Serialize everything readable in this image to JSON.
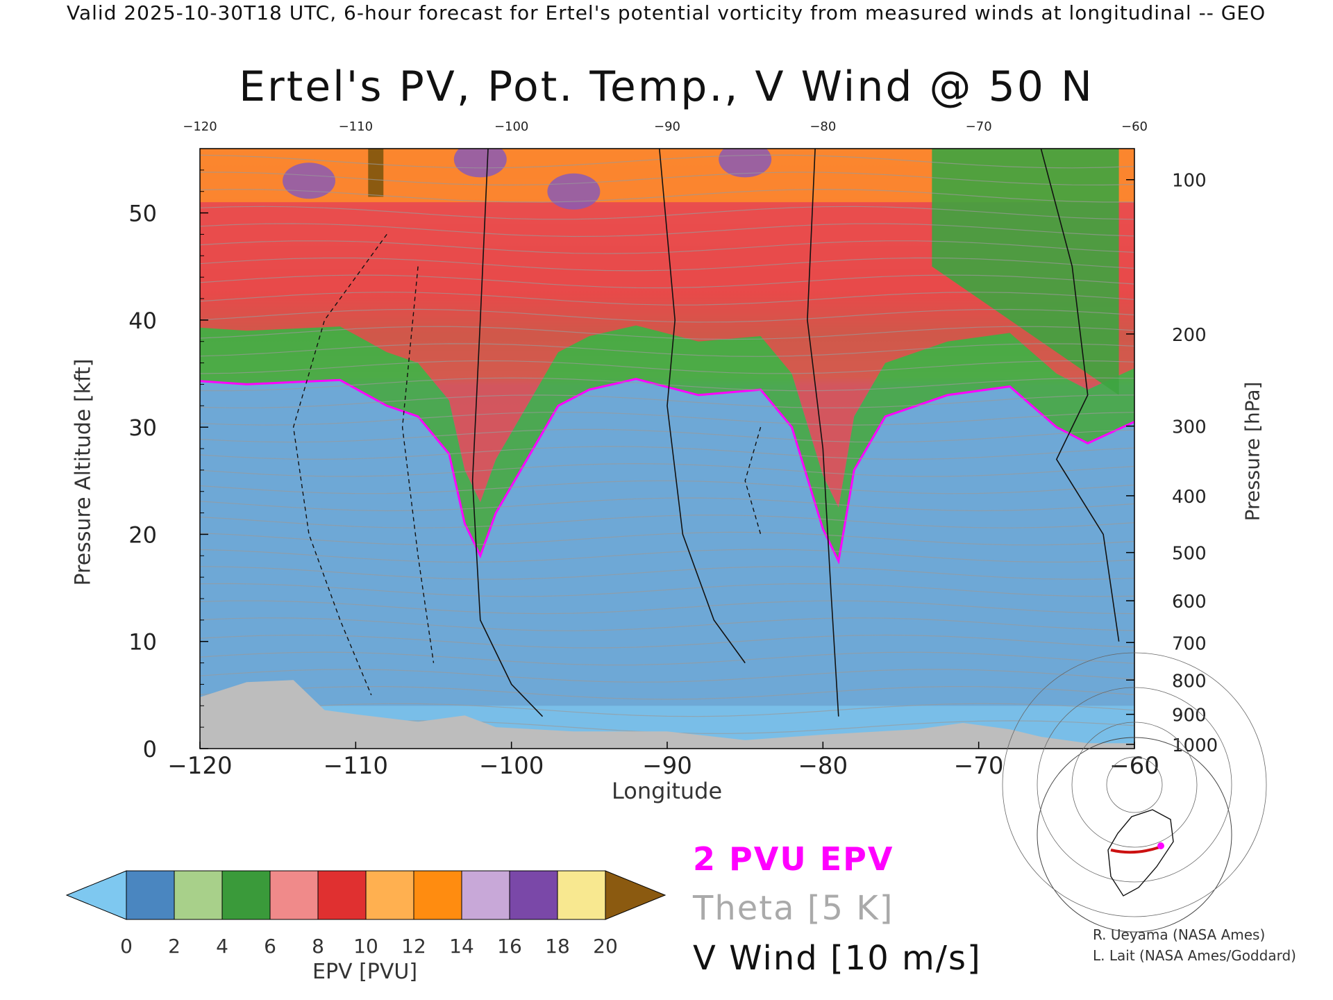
{
  "header": "Valid 2025-10-30T18 UTC, 6-hour forecast for Ertel's potential vorticity from measured winds at longitudinal -- GEO",
  "chart_data": {
    "type": "heatmap",
    "title": "Ertel's PV, Pot. Temp., V Wind @ 50 N",
    "xlabel": "Longitude",
    "ylabel": "Pressure Altitude [kft]",
    "y2label": "Pressure [hPa]",
    "xlim": [
      -120,
      -60
    ],
    "ylim": [
      0,
      56
    ],
    "x_ticks": [
      -120,
      -110,
      -100,
      -90,
      -80,
      -70,
      -60
    ],
    "x_top_ticks": [
      -120,
      -110,
      -100,
      -90,
      -80,
      -70,
      -60
    ],
    "y_ticks": [
      0,
      10,
      20,
      30,
      40,
      50
    ],
    "pressure_ticks": [
      {
        "hPa": 100,
        "kft": 53.1
      },
      {
        "hPa": 200,
        "kft": 38.7
      },
      {
        "hPa": 300,
        "kft": 30.1
      },
      {
        "hPa": 400,
        "kft": 23.6
      },
      {
        "hPa": 500,
        "kft": 18.3
      },
      {
        "hPa": 600,
        "kft": 13.8
      },
      {
        "hPa": 700,
        "kft": 9.9
      },
      {
        "hPa": 800,
        "kft": 6.4
      },
      {
        "hPa": 900,
        "kft": 3.2
      },
      {
        "hPa": 1000,
        "kft": 0.4
      }
    ],
    "tropopause_2pvu_kft": [
      {
        "lon": -120,
        "kft": 34.3
      },
      {
        "lon": -117,
        "kft": 34.0
      },
      {
        "lon": -114,
        "kft": 34.2
      },
      {
        "lon": -111,
        "kft": 34.4
      },
      {
        "lon": -108,
        "kft": 32.0
      },
      {
        "lon": -106,
        "kft": 31.0
      },
      {
        "lon": -104,
        "kft": 27.5
      },
      {
        "lon": -103,
        "kft": 21.0
      },
      {
        "lon": -102,
        "kft": 18.0
      },
      {
        "lon": -101,
        "kft": 22.0
      },
      {
        "lon": -99,
        "kft": 27.0
      },
      {
        "lon": -97,
        "kft": 32.0
      },
      {
        "lon": -95,
        "kft": 33.5
      },
      {
        "lon": -92,
        "kft": 34.5
      },
      {
        "lon": -88,
        "kft": 33.0
      },
      {
        "lon": -84,
        "kft": 33.5
      },
      {
        "lon": -82,
        "kft": 30.0
      },
      {
        "lon": -80,
        "kft": 20.5
      },
      {
        "lon": -79,
        "kft": 17.5
      },
      {
        "lon": -78,
        "kft": 26.0
      },
      {
        "lon": -76,
        "kft": 31.0
      },
      {
        "lon": -72,
        "kft": 33.0
      },
      {
        "lon": -68,
        "kft": 33.8
      },
      {
        "lon": -65,
        "kft": 30.0
      },
      {
        "lon": -63,
        "kft": 28.5
      },
      {
        "lon": -60,
        "kft": 30.5
      }
    ],
    "terrain_kft": [
      {
        "lon": -120,
        "kft": 4.8
      },
      {
        "lon": -117,
        "kft": 6.2
      },
      {
        "lon": -114,
        "kft": 6.4
      },
      {
        "lon": -112,
        "kft": 3.6
      },
      {
        "lon": -110,
        "kft": 3.2
      },
      {
        "lon": -106,
        "kft": 2.5
      },
      {
        "lon": -103,
        "kft": 3.1
      },
      {
        "lon": -101,
        "kft": 2.0
      },
      {
        "lon": -96,
        "kft": 1.6
      },
      {
        "lon": -90,
        "kft": 1.6
      },
      {
        "lon": -85,
        "kft": 0.8
      },
      {
        "lon": -80,
        "kft": 1.3
      },
      {
        "lon": -74,
        "kft": 1.8
      },
      {
        "lon": -71,
        "kft": 2.4
      },
      {
        "lon": -68,
        "kft": 1.8
      },
      {
        "lon": -66,
        "kft": 1.1
      },
      {
        "lon": -63,
        "kft": 0.5
      },
      {
        "lon": -60,
        "kft": 0.5
      }
    ],
    "colorbar": {
      "title": "EPV [PVU]",
      "labels": [
        "0",
        "2",
        "4",
        "6",
        "8",
        "10",
        "12",
        "14",
        "16",
        "18",
        "20"
      ],
      "under_color": "#7ec8f0",
      "over_color": "#8b5a10",
      "colors": [
        "#4a86c0",
        "#a8d08a",
        "#3a9a3a",
        "#f08a8a",
        "#e03030",
        "#ffb050",
        "#ff8c10",
        "#c8a8d8",
        "#7a48a8",
        "#f8e890"
      ]
    },
    "legend": [
      "2 PVU EPV",
      "Theta [5 K]",
      "V Wind [10 m/s]"
    ]
  },
  "credits": [
    "R. Ueyama (NASA Ames)",
    "L. Lait (NASA Ames/Goddard)"
  ]
}
